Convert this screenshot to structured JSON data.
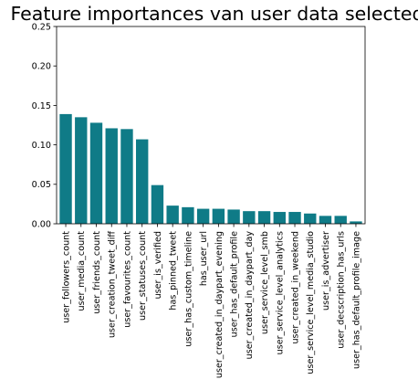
{
  "chart_data": {
    "type": "bar",
    "title": "Feature importances van user data selected",
    "xlabel": "",
    "ylabel": "",
    "ylim": [
      0,
      0.25
    ],
    "yticks": [
      "0.00",
      "0.05",
      "0.10",
      "0.15",
      "0.20",
      "0.25"
    ],
    "categories": [
      "user_followers_count",
      "user_media_count",
      "user_friends_count",
      "user_creation_tweet_diff",
      "user_favourites_count",
      "user_statuses_count",
      "user_is_verified",
      "has_pinned_tweet",
      "user_has_custom_timeline",
      "has_user_url",
      "user_created_in_daypart_evening",
      "user_has_default_profile",
      "user_created_in_daypart_day",
      "user_service_level_smb",
      "user_service_level_analytics",
      "user_created_in_weekend",
      "user_service_level_media_studio",
      "user_is_advertiser",
      "user_decscription_has_urls",
      "user_has_default_profile_image"
    ],
    "values": [
      0.139,
      0.135,
      0.128,
      0.121,
      0.12,
      0.107,
      0.049,
      0.023,
      0.021,
      0.019,
      0.019,
      0.018,
      0.016,
      0.016,
      0.015,
      0.015,
      0.013,
      0.01,
      0.01,
      0.003
    ],
    "bar_color": "#0f7b87",
    "grid": false
  }
}
